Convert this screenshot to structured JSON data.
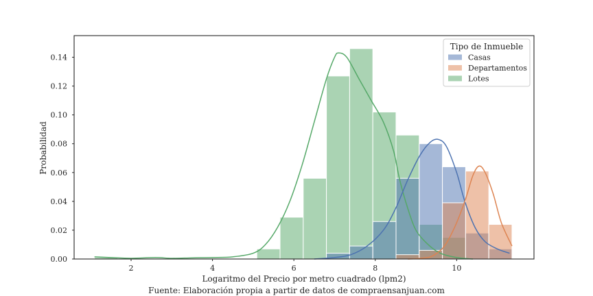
{
  "chart_data": {
    "type": "histogram",
    "xlabel": "Logaritmo del Precio por metro cuadrado (lpm2)",
    "ylabel": "Probabilidad",
    "caption": "Fuente: Elaboración propia a partir de datos de compraensanjuan.com",
    "xlim": [
      0.6,
      11.9
    ],
    "ylim": [
      0,
      0.155
    ],
    "xticks": [
      2,
      4,
      6,
      8,
      10
    ],
    "yticks": [
      0.0,
      0.02,
      0.04,
      0.06,
      0.08,
      0.1,
      0.12,
      0.14
    ],
    "xtick_labels": [
      "2",
      "4",
      "6",
      "8",
      "10"
    ],
    "ytick_labels": [
      "0.00",
      "0.02",
      "0.04",
      "0.06",
      "0.08",
      "0.10",
      "0.12",
      "0.14"
    ],
    "grid": false,
    "legend": {
      "title": "Tipo de Inmueble",
      "position": "top-right"
    },
    "bins": [
      [
        1.1,
        1.67
      ],
      [
        1.67,
        2.24
      ],
      [
        2.24,
        2.81
      ],
      [
        2.81,
        3.38
      ],
      [
        3.38,
        3.95
      ],
      [
        3.95,
        4.52
      ],
      [
        4.52,
        5.09
      ],
      [
        5.09,
        5.66
      ],
      [
        5.66,
        6.23
      ],
      [
        6.23,
        6.8
      ],
      [
        6.8,
        7.37
      ],
      [
        7.37,
        7.94
      ],
      [
        7.94,
        8.51
      ],
      [
        8.51,
        9.08
      ],
      [
        9.08,
        9.65
      ],
      [
        9.65,
        10.22
      ],
      [
        10.22,
        10.79
      ],
      [
        10.79,
        11.36
      ]
    ],
    "series": [
      {
        "name": "Lotes",
        "color": "#55a868",
        "values": [
          0.001,
          0.0,
          0.0,
          0.0,
          0.0,
          0.0,
          0.0,
          0.007,
          0.029,
          0.056,
          0.127,
          0.146,
          0.102,
          0.086,
          0.024,
          0.015,
          0.0,
          0.0
        ],
        "kde": [
          [
            1.1,
            0.0015
          ],
          [
            1.5,
            0.001
          ],
          [
            2.0,
            0.0005
          ],
          [
            2.6,
            0.001
          ],
          [
            3.0,
            0.0005
          ],
          [
            3.5,
            0.0008
          ],
          [
            4.0,
            0.001
          ],
          [
            4.5,
            0.0015
          ],
          [
            5.0,
            0.004
          ],
          [
            5.3,
            0.01
          ],
          [
            5.6,
            0.022
          ],
          [
            5.9,
            0.04
          ],
          [
            6.2,
            0.065
          ],
          [
            6.5,
            0.095
          ],
          [
            6.8,
            0.125
          ],
          [
            7.0,
            0.14
          ],
          [
            7.1,
            0.143
          ],
          [
            7.3,
            0.14
          ],
          [
            7.6,
            0.125
          ],
          [
            7.9,
            0.11
          ],
          [
            8.2,
            0.095
          ],
          [
            8.45,
            0.075
          ],
          [
            8.6,
            0.055
          ],
          [
            8.8,
            0.035
          ],
          [
            9.0,
            0.02
          ],
          [
            9.3,
            0.01
          ],
          [
            9.6,
            0.004
          ],
          [
            10.0,
            0.001
          ],
          [
            10.4,
            0.0
          ]
        ]
      },
      {
        "name": "Casas",
        "color": "#4c72b0",
        "values": [
          0.0,
          0.0,
          0.0,
          0.0,
          0.0,
          0.0,
          0.0,
          0.0,
          0.0,
          0.0,
          0.004,
          0.009,
          0.026,
          0.056,
          0.08,
          0.064,
          0.018,
          0.007
        ],
        "kde": [
          [
            6.5,
            0.0
          ],
          [
            7.0,
            0.001
          ],
          [
            7.4,
            0.003
          ],
          [
            7.8,
            0.009
          ],
          [
            8.2,
            0.02
          ],
          [
            8.5,
            0.035
          ],
          [
            8.8,
            0.055
          ],
          [
            9.1,
            0.072
          ],
          [
            9.35,
            0.081
          ],
          [
            9.55,
            0.083
          ],
          [
            9.75,
            0.078
          ],
          [
            10.0,
            0.06
          ],
          [
            10.2,
            0.04
          ],
          [
            10.45,
            0.022
          ],
          [
            10.7,
            0.012
          ],
          [
            11.0,
            0.007
          ],
          [
            11.3,
            0.004
          ]
        ]
      },
      {
        "name": "Departamentos",
        "color": "#dd8452",
        "values": [
          0.0,
          0.0,
          0.0,
          0.0,
          0.0,
          0.0,
          0.0,
          0.0,
          0.0,
          0.0,
          0.0,
          0.0,
          0.0,
          0.003,
          0.006,
          0.039,
          0.061,
          0.024
        ],
        "kde": [
          [
            8.8,
            0.0
          ],
          [
            9.1,
            0.0005
          ],
          [
            9.4,
            0.002
          ],
          [
            9.7,
            0.009
          ],
          [
            9.95,
            0.022
          ],
          [
            10.2,
            0.04
          ],
          [
            10.4,
            0.058
          ],
          [
            10.55,
            0.0645
          ],
          [
            10.7,
            0.06
          ],
          [
            10.9,
            0.045
          ],
          [
            11.1,
            0.025
          ],
          [
            11.36,
            0.009
          ]
        ]
      }
    ]
  }
}
